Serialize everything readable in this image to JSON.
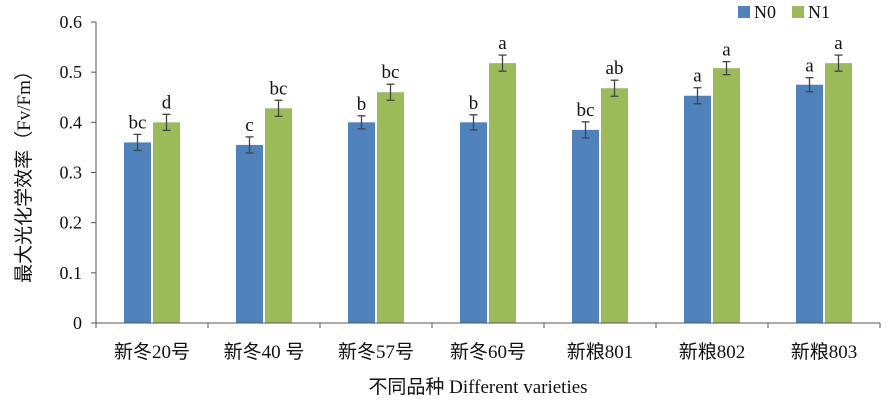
{
  "chart_data": {
    "type": "bar",
    "categories": [
      "新冬20号",
      "新冬40 号",
      "新冬57号",
      "新冬60号",
      "新粮801",
      "新粮802",
      "新粮803"
    ],
    "series": [
      {
        "name": "N0",
        "color": "#4F81BD",
        "values": [
          0.36,
          0.355,
          0.4,
          0.4,
          0.385,
          0.453,
          0.475
        ],
        "errors": [
          0.016,
          0.016,
          0.013,
          0.015,
          0.016,
          0.016,
          0.014
        ],
        "labels": [
          "bc",
          "c",
          "b",
          "b",
          "bc",
          "a",
          "a"
        ]
      },
      {
        "name": "N1",
        "color": "#9BBB59",
        "values": [
          0.4,
          0.428,
          0.46,
          0.518,
          0.468,
          0.508,
          0.518
        ],
        "errors": [
          0.016,
          0.016,
          0.016,
          0.016,
          0.016,
          0.013,
          0.016
        ],
        "labels": [
          "d",
          "bc",
          "bc",
          "a",
          "ab",
          "a",
          "a"
        ]
      }
    ],
    "xlabel": "不同品种 Different varieties",
    "ylabel": "最大光化学效率（Fv/Fm）",
    "ylim": [
      0,
      0.6
    ],
    "yticks": [
      "0",
      "0.1",
      "0.2",
      "0.3",
      "0.4",
      "0.5",
      "0.6"
    ],
    "legend_position": "top-right",
    "grid": false
  }
}
